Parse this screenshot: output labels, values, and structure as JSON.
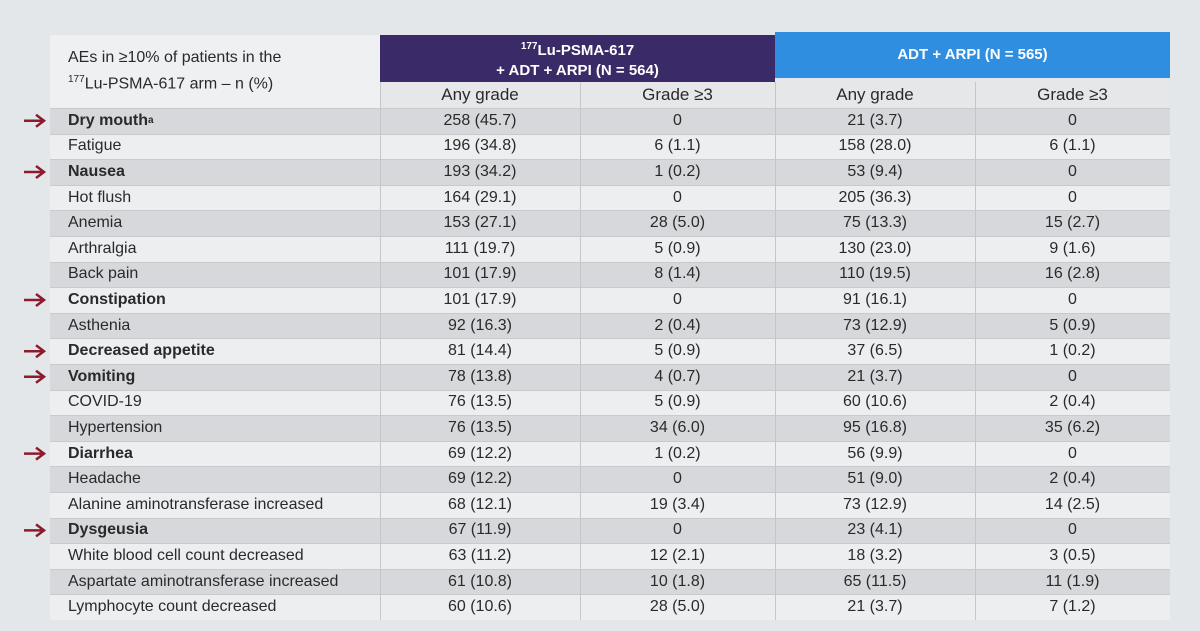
{
  "header": {
    "title_line1": "AEs in ≥10% of patients in the",
    "title_line2": {
      "sup": "177",
      "text": "Lu-PSMA-617 arm – n (%)"
    }
  },
  "groups": [
    {
      "line1": {
        "sup": "177",
        "text": "Lu-PSMA-617"
      },
      "line2": "+ ADT + ARPI (N = 564)"
    },
    {
      "line1": {
        "text": "ADT + ARPI (N = 565)"
      }
    }
  ],
  "subheaders": [
    "Any grade",
    "Grade ≥3",
    "Any grade",
    "Grade ≥3"
  ],
  "rows": [
    {
      "label": "Dry mouth",
      "note": "a",
      "highlight": true,
      "cells": [
        "258 (45.7)",
        "0",
        "21 (3.7)",
        "0"
      ]
    },
    {
      "label": "Fatigue",
      "cells": [
        "196 (34.8)",
        "6 (1.1)",
        "158 (28.0)",
        "6 (1.1)"
      ]
    },
    {
      "label": "Nausea",
      "highlight": true,
      "cells": [
        "193 (34.2)",
        "1 (0.2)",
        "53 (9.4)",
        "0"
      ]
    },
    {
      "label": "Hot flush",
      "cells": [
        "164 (29.1)",
        "0",
        "205 (36.3)",
        "0"
      ]
    },
    {
      "label": "Anemia",
      "cells": [
        "153 (27.1)",
        "28 (5.0)",
        "75 (13.3)",
        "15 (2.7)"
      ]
    },
    {
      "label": "Arthralgia",
      "cells": [
        "111 (19.7)",
        "5 (0.9)",
        "130 (23.0)",
        "9 (1.6)"
      ]
    },
    {
      "label": "Back pain",
      "cells": [
        "101 (17.9)",
        "8 (1.4)",
        "110 (19.5)",
        "16 (2.8)"
      ]
    },
    {
      "label": "Constipation",
      "highlight": true,
      "cells": [
        "101 (17.9)",
        "0",
        "91 (16.1)",
        "0"
      ]
    },
    {
      "label": "Asthenia",
      "cells": [
        "92 (16.3)",
        "2 (0.4)",
        "73 (12.9)",
        "5 (0.9)"
      ]
    },
    {
      "label": "Decreased appetite",
      "highlight": true,
      "cells": [
        "81 (14.4)",
        "5 (0.9)",
        "37 (6.5)",
        "1 (0.2)"
      ]
    },
    {
      "label": "Vomiting",
      "highlight": true,
      "cells": [
        "78 (13.8)",
        "4 (0.7)",
        "21 (3.7)",
        "0"
      ]
    },
    {
      "label": "COVID-19",
      "cells": [
        "76 (13.5)",
        "5 (0.9)",
        "60 (10.6)",
        "2 (0.4)"
      ]
    },
    {
      "label": "Hypertension",
      "cells": [
        "76 (13.5)",
        "34 (6.0)",
        "95 (16.8)",
        "35 (6.2)"
      ]
    },
    {
      "label": "Diarrhea",
      "highlight": true,
      "cells": [
        "69 (12.2)",
        "1 (0.2)",
        "56 (9.9)",
        "0"
      ]
    },
    {
      "label": "Headache",
      "cells": [
        "69 (12.2)",
        "0",
        "51 (9.0)",
        "2 (0.4)"
      ]
    },
    {
      "label": "Alanine aminotransferase increased",
      "cells": [
        "68 (12.1)",
        "19 (3.4)",
        "73 (12.9)",
        "14 (2.5)"
      ]
    },
    {
      "label": "Dysgeusia",
      "highlight": true,
      "cells": [
        "67 (11.9)",
        "0",
        "23 (4.1)",
        "0"
      ]
    },
    {
      "label": "White blood cell count decreased",
      "cells": [
        "63 (11.2)",
        "12 (2.1)",
        "18 (3.2)",
        "3 (0.5)"
      ]
    },
    {
      "label": "Aspartate aminotransferase increased",
      "cells": [
        "61 (10.8)",
        "10 (1.8)",
        "65 (11.5)",
        "11 (1.9)"
      ]
    },
    {
      "label": "Lymphocyte count decreased",
      "cells": [
        "60 (10.6)",
        "28 (5.0)",
        "21 (3.7)",
        "7 (1.2)"
      ]
    }
  ]
}
